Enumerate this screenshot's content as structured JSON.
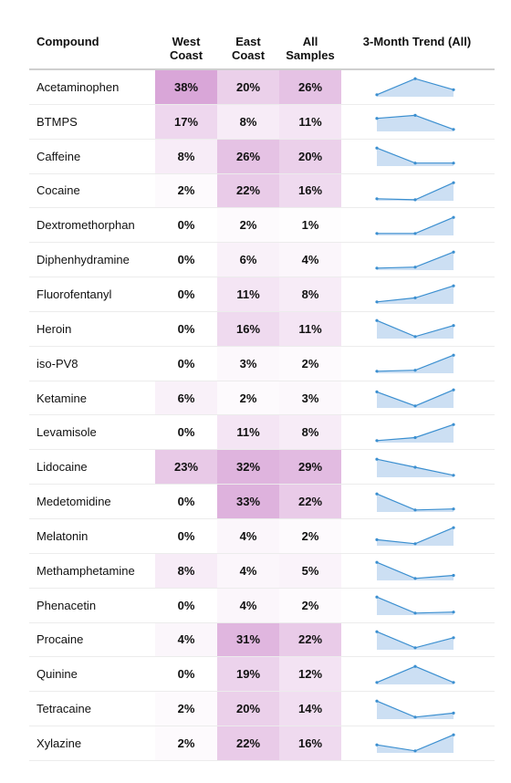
{
  "chart_data": {
    "type": "table",
    "headers": {
      "compound": "Compound",
      "west": "West\nCoast",
      "east": "East\nCoast",
      "all": "All\nSamples",
      "trend": "3-Month Trend (All)"
    },
    "colors": {
      "heat_base": "#ffffff",
      "heat_max": "#d9a6d8",
      "trend_line": "#3b8fd0",
      "trend_fill": "#c6dcf2"
    },
    "heat_max_value": 38,
    "rows": [
      {
        "compound": "Acetaminophen",
        "west": "38%",
        "east": "20%",
        "all": "26%",
        "west_value": 38,
        "east_value": 20,
        "all_value": 26,
        "trend": [
          0.12,
          0.28,
          0.17
        ]
      },
      {
        "compound": "BTMPS",
        "west": "17%",
        "east": "8%",
        "all": "11%",
        "west_value": 17,
        "east_value": 8,
        "all_value": 11,
        "trend": [
          0.23,
          0.26,
          0.12
        ]
      },
      {
        "compound": "Caffeine",
        "west": "8%",
        "east": "26%",
        "all": "20%",
        "west_value": 8,
        "east_value": 26,
        "all_value": 20,
        "trend": [
          0.28,
          0.13,
          0.13
        ]
      },
      {
        "compound": "Cocaine",
        "west": "2%",
        "east": "22%",
        "all": "16%",
        "west_value": 2,
        "east_value": 22,
        "all_value": 16,
        "trend": [
          0.12,
          0.11,
          0.28
        ]
      },
      {
        "compound": "Dextromethorphan",
        "west": "0%",
        "east": "2%",
        "all": "1%",
        "west_value": 0,
        "east_value": 2,
        "all_value": 1,
        "trend": [
          0.12,
          0.12,
          0.28
        ]
      },
      {
        "compound": "Diphenhydramine",
        "west": "0%",
        "east": "6%",
        "all": "4%",
        "west_value": 0,
        "east_value": 6,
        "all_value": 4,
        "trend": [
          0.12,
          0.13,
          0.28
        ]
      },
      {
        "compound": "Fluorofentanyl",
        "west": "0%",
        "east": "11%",
        "all": "8%",
        "west_value": 0,
        "east_value": 11,
        "all_value": 8,
        "trend": [
          0.12,
          0.16,
          0.28
        ]
      },
      {
        "compound": "Heroin",
        "west": "0%",
        "east": "16%",
        "all": "11%",
        "west_value": 0,
        "east_value": 16,
        "all_value": 11,
        "trend": [
          0.28,
          0.12,
          0.23
        ]
      },
      {
        "compound": "iso-PV8",
        "west": "0%",
        "east": "3%",
        "all": "2%",
        "west_value": 0,
        "east_value": 3,
        "all_value": 2,
        "trend": [
          0.12,
          0.13,
          0.28
        ]
      },
      {
        "compound": "Ketamine",
        "west": "6%",
        "east": "2%",
        "all": "3%",
        "west_value": 6,
        "east_value": 2,
        "all_value": 3,
        "trend": [
          0.26,
          0.12,
          0.28
        ]
      },
      {
        "compound": "Levamisole",
        "west": "0%",
        "east": "11%",
        "all": "8%",
        "west_value": 0,
        "east_value": 11,
        "all_value": 8,
        "trend": [
          0.12,
          0.15,
          0.28
        ]
      },
      {
        "compound": "Lidocaine",
        "west": "23%",
        "east": "32%",
        "all": "29%",
        "west_value": 23,
        "east_value": 32,
        "all_value": 29,
        "trend": [
          0.28,
          0.2,
          0.12
        ]
      },
      {
        "compound": "Medetomidine",
        "west": "0%",
        "east": "33%",
        "all": "22%",
        "west_value": 0,
        "east_value": 33,
        "all_value": 22,
        "trend": [
          0.28,
          0.12,
          0.13
        ]
      },
      {
        "compound": "Melatonin",
        "west": "0%",
        "east": "4%",
        "all": "2%",
        "west_value": 0,
        "east_value": 4,
        "all_value": 2,
        "trend": [
          0.16,
          0.12,
          0.28
        ]
      },
      {
        "compound": "Methamphetamine",
        "west": "8%",
        "east": "4%",
        "all": "5%",
        "west_value": 8,
        "east_value": 4,
        "all_value": 5,
        "trend": [
          0.28,
          0.12,
          0.15
        ]
      },
      {
        "compound": "Phenacetin",
        "west": "0%",
        "east": "4%",
        "all": "2%",
        "west_value": 0,
        "east_value": 4,
        "all_value": 2,
        "trend": [
          0.28,
          0.12,
          0.13
        ]
      },
      {
        "compound": "Procaine",
        "west": "4%",
        "east": "31%",
        "all": "22%",
        "west_value": 4,
        "east_value": 31,
        "all_value": 22,
        "trend": [
          0.28,
          0.12,
          0.22
        ]
      },
      {
        "compound": "Quinine",
        "west": "0%",
        "east": "19%",
        "all": "12%",
        "west_value": 0,
        "east_value": 19,
        "all_value": 12,
        "trend": [
          0.12,
          0.28,
          0.12
        ]
      },
      {
        "compound": "Tetracaine",
        "west": "2%",
        "east": "20%",
        "all": "14%",
        "west_value": 2,
        "east_value": 20,
        "all_value": 14,
        "trend": [
          0.28,
          0.12,
          0.16
        ]
      },
      {
        "compound": "Xylazine",
        "west": "2%",
        "east": "22%",
        "all": "16%",
        "west_value": 2,
        "east_value": 22,
        "all_value": 16,
        "trend": [
          0.18,
          0.12,
          0.28
        ]
      }
    ]
  }
}
